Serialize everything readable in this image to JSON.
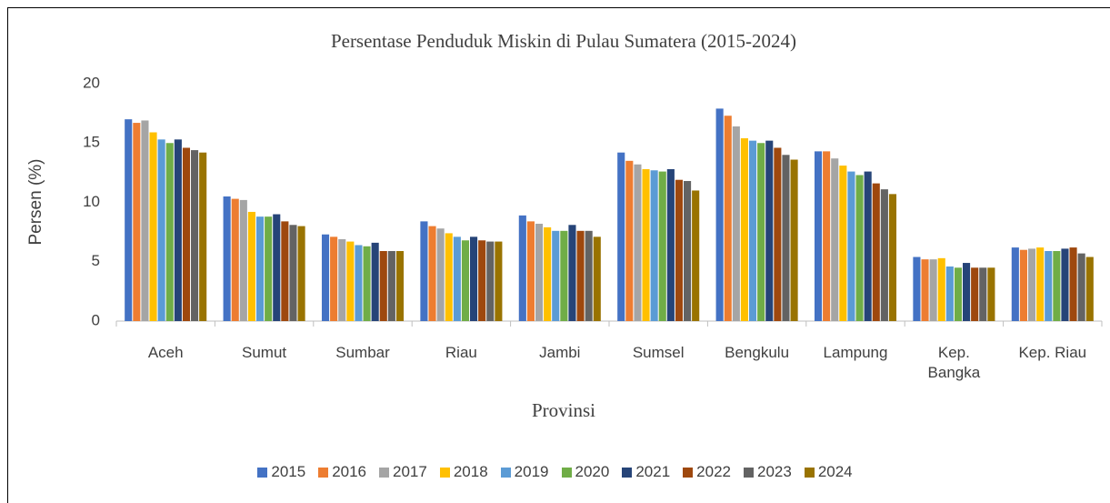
{
  "chart_data": {
    "type": "bar",
    "title": "Persentase Penduduk Miskin di Pulau Sumatera (2015-2024)",
    "x_label": "Provinsi",
    "y_label": "Persen (%)",
    "categories": [
      "Aceh",
      "Sumut",
      "Sumbar",
      "Riau",
      "Jambi",
      "Sumsel",
      "Bengkulu",
      "Lampung",
      "Kep. Bangka",
      "Kep. Riau"
    ],
    "series": [
      {
        "name": "2015",
        "color": "#4472c4",
        "values": [
          17.0,
          10.5,
          7.3,
          8.4,
          8.9,
          14.2,
          17.9,
          14.3,
          5.4,
          6.2
        ]
      },
      {
        "name": "2016",
        "color": "#ed7d31",
        "values": [
          16.7,
          10.3,
          7.1,
          8.0,
          8.4,
          13.5,
          17.3,
          14.3,
          5.2,
          6.0
        ]
      },
      {
        "name": "2017",
        "color": "#a5a5a5",
        "values": [
          16.9,
          10.2,
          6.9,
          7.8,
          8.2,
          13.2,
          16.4,
          13.7,
          5.2,
          6.1
        ]
      },
      {
        "name": "2018",
        "color": "#ffc000",
        "values": [
          15.9,
          9.2,
          6.7,
          7.4,
          7.9,
          12.8,
          15.4,
          13.1,
          5.3,
          6.2
        ]
      },
      {
        "name": "2019",
        "color": "#5b9bd5",
        "values": [
          15.3,
          8.8,
          6.4,
          7.1,
          7.6,
          12.7,
          15.2,
          12.6,
          4.6,
          5.9
        ]
      },
      {
        "name": "2020",
        "color": "#70ad47",
        "values": [
          15.0,
          8.8,
          6.3,
          6.8,
          7.6,
          12.6,
          15.0,
          12.3,
          4.5,
          5.9
        ]
      },
      {
        "name": "2021",
        "color": "#264478",
        "values": [
          15.3,
          9.0,
          6.6,
          7.1,
          8.1,
          12.8,
          15.2,
          12.6,
          4.9,
          6.1
        ]
      },
      {
        "name": "2022",
        "color": "#9e480e",
        "values": [
          14.6,
          8.4,
          5.9,
          6.8,
          7.6,
          11.9,
          14.6,
          11.6,
          4.5,
          6.2
        ]
      },
      {
        "name": "2023",
        "color": "#636363",
        "values": [
          14.4,
          8.1,
          5.9,
          6.7,
          7.6,
          11.8,
          14.0,
          11.1,
          4.5,
          5.7
        ]
      },
      {
        "name": "2024",
        "color": "#997300",
        "values": [
          14.2,
          8.0,
          5.9,
          6.7,
          7.1,
          11.0,
          13.6,
          10.7,
          4.5,
          5.4
        ]
      }
    ],
    "ylim": [
      0,
      20
    ],
    "yticks": [
      0,
      5,
      10,
      15,
      20
    ],
    "grid": false
  }
}
